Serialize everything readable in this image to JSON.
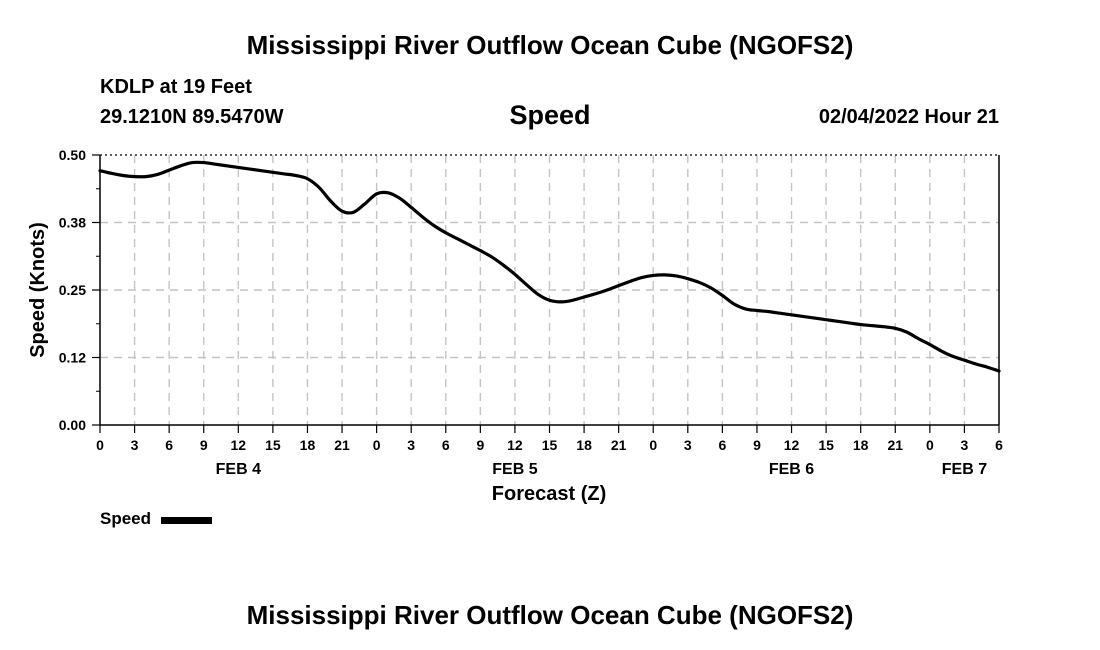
{
  "header": {
    "title": "Mississippi River Outflow Ocean Cube (NGOFS2)",
    "station": "KDLP at 19 Feet",
    "coords": "29.1210N  89.5470W",
    "chart_title": "Speed",
    "timestamp": "02/04/2022 Hour 21"
  },
  "footer": {
    "title": "Mississippi River Outflow Ocean Cube (NGOFS2)"
  },
  "legend": {
    "label": "Speed",
    "color": "#000000"
  },
  "chart_data": {
    "type": "line",
    "title": "Speed",
    "ylabel": "Speed (Knots)",
    "xlabel": "Forecast (Z)",
    "ylim": [
      0,
      0.5
    ],
    "xlim": [
      0,
      78
    ],
    "y_ticks": [
      "0.00",
      "0.12",
      "0.25",
      "0.38",
      "0.50"
    ],
    "y_tick_values": [
      0,
      0.125,
      0.25,
      0.375,
      0.5
    ],
    "x_tick_labels": [
      "0",
      "3",
      "6",
      "9",
      "12",
      "15",
      "18",
      "21",
      "0",
      "3",
      "6",
      "9",
      "12",
      "15",
      "18",
      "21",
      "0",
      "3",
      "6",
      "9",
      "12",
      "15",
      "18",
      "21",
      "0",
      "3",
      "6"
    ],
    "day_labels": [
      {
        "label": "FEB 4",
        "hour": 12
      },
      {
        "label": "FEB 5",
        "hour": 36
      },
      {
        "label": "FEB 6",
        "hour": 60
      },
      {
        "label": "FEB 7",
        "hour": 75
      }
    ],
    "grid": true,
    "series": [
      {
        "name": "Speed",
        "color": "#000000",
        "x": [
          0,
          1,
          2,
          3,
          4,
          5,
          6,
          7,
          8,
          9,
          10,
          11,
          12,
          13,
          14,
          15,
          16,
          17,
          18,
          19,
          20,
          21,
          22,
          23,
          24,
          25,
          26,
          27,
          28,
          29,
          30,
          31,
          32,
          33,
          34,
          35,
          36,
          37,
          38,
          39,
          40,
          41,
          42,
          43,
          44,
          45,
          46,
          47,
          48,
          49,
          50,
          51,
          52,
          53,
          54,
          55,
          56,
          57,
          58,
          59,
          60,
          61,
          62,
          63,
          64,
          65,
          66,
          67,
          68,
          69,
          70,
          71,
          72,
          73,
          74,
          75,
          76,
          77,
          78
        ],
        "values": [
          0.471,
          0.466,
          0.462,
          0.46,
          0.46,
          0.464,
          0.472,
          0.48,
          0.486,
          0.486,
          0.483,
          0.48,
          0.477,
          0.474,
          0.471,
          0.468,
          0.465,
          0.462,
          0.456,
          0.44,
          0.415,
          0.396,
          0.394,
          0.41,
          0.428,
          0.43,
          0.42,
          0.403,
          0.385,
          0.369,
          0.356,
          0.345,
          0.334,
          0.323,
          0.311,
          0.296,
          0.279,
          0.26,
          0.242,
          0.231,
          0.228,
          0.231,
          0.237,
          0.243,
          0.25,
          0.258,
          0.266,
          0.273,
          0.277,
          0.278,
          0.276,
          0.271,
          0.264,
          0.254,
          0.24,
          0.224,
          0.215,
          0.212,
          0.21,
          0.207,
          0.204,
          0.201,
          0.198,
          0.195,
          0.192,
          0.189,
          0.186,
          0.184,
          0.182,
          0.179,
          0.172,
          0.16,
          0.149,
          0.137,
          0.127,
          0.12,
          0.113,
          0.107,
          0.1
        ]
      }
    ]
  }
}
